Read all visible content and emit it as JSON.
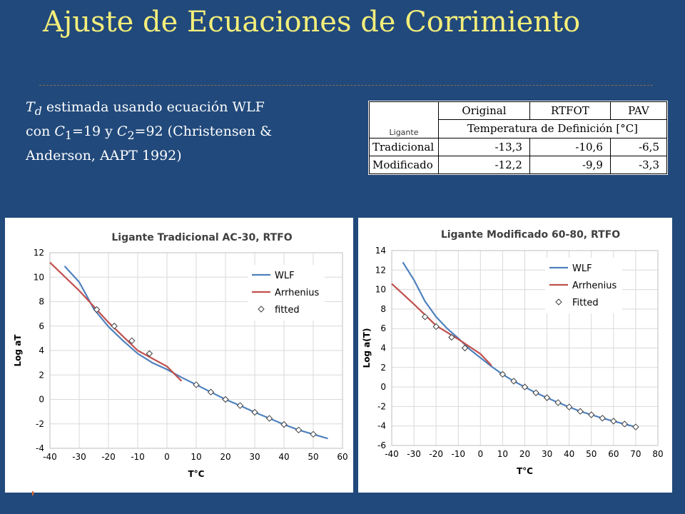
{
  "slide": {
    "title": "Ajuste de Ecuaciones de Corrimiento",
    "text": {
      "td_symbol": "T",
      "td_sub": "d",
      "line1_rest": " estimada usando ecuación WLF",
      "line2_a": "con ",
      "c1_symbol": "C",
      "c1_sub": "1",
      "line2_b": "=19 y ",
      "c2_symbol": "C",
      "c2_sub": "2",
      "line2_c": "=92 (Christensen &",
      "line3": "Anderson, AAPT 1992)"
    }
  },
  "table": {
    "row_header_label": "Ligante",
    "columns": [
      "Original",
      "RTFOT",
      "PAV"
    ],
    "subheader": "Temperatura de Definición [°C]",
    "rows": [
      {
        "label": "Tradicional",
        "values": [
          "-13,3",
          "-10,6",
          "-6,5"
        ]
      },
      {
        "label": "Modificado",
        "values": [
          "-12,2",
          "-9,9",
          "-3,3"
        ]
      }
    ]
  },
  "chart_data": [
    {
      "type": "line",
      "title": "Ligante Tradicional AC-30, RTFO",
      "xlabel": "T°C",
      "ylabel": "Log aT",
      "xlim": [
        -40,
        60
      ],
      "ylim": [
        -4,
        12
      ],
      "xticks": [
        -40,
        -30,
        -20,
        -10,
        0,
        10,
        20,
        30,
        40,
        50,
        60
      ],
      "yticks": [
        -4,
        -2,
        0,
        2,
        4,
        6,
        8,
        10,
        12
      ],
      "grid": true,
      "legend_position": "top-right",
      "series": [
        {
          "name": "WLF",
          "kind": "line",
          "color": "#4f81bd",
          "points": [
            [
              -35,
              10.9
            ],
            [
              -30,
              9.6
            ],
            [
              -25,
              7.4
            ],
            [
              -20,
              5.95
            ],
            [
              -15,
              4.8
            ],
            [
              -10,
              3.75
            ],
            [
              -5,
              3.0
            ],
            [
              0,
              2.45
            ],
            [
              5,
              1.8
            ],
            [
              10,
              1.2
            ],
            [
              15,
              0.6
            ],
            [
              20,
              0.0
            ],
            [
              25,
              -0.5
            ],
            [
              30,
              -1.05
            ],
            [
              35,
              -1.55
            ],
            [
              40,
              -2.05
            ],
            [
              45,
              -2.5
            ],
            [
              50,
              -2.85
            ],
            [
              55,
              -3.2
            ]
          ]
        },
        {
          "name": "Arrhenius",
          "kind": "line",
          "color": "#c0504d",
          "points": [
            [
              -40,
              11.2
            ],
            [
              -30,
              8.9
            ],
            [
              -20,
              6.3
            ],
            [
              -10,
              4.0
            ],
            [
              0,
              2.7
            ],
            [
              5,
              1.5
            ]
          ]
        },
        {
          "name": "fitted",
          "kind": "marker",
          "points": [
            [
              -24,
              7.35
            ],
            [
              -18,
              6.0
            ],
            [
              -12,
              4.8
            ],
            [
              -6,
              3.75
            ],
            [
              10,
              1.2
            ],
            [
              15,
              0.6
            ],
            [
              20,
              0.0
            ],
            [
              25,
              -0.5
            ],
            [
              30,
              -1.05
            ],
            [
              35,
              -1.55
            ],
            [
              40,
              -2.05
            ],
            [
              45,
              -2.5
            ],
            [
              50,
              -2.85
            ]
          ]
        }
      ]
    },
    {
      "type": "line",
      "title": "Ligante Modificado 60-80, RTFO",
      "xlabel": "T°C",
      "ylabel": "Log a(T)",
      "xlim": [
        -40,
        80
      ],
      "ylim": [
        -6,
        14
      ],
      "xticks": [
        -40,
        -30,
        -20,
        -10,
        0,
        10,
        20,
        30,
        40,
        50,
        60,
        70,
        80
      ],
      "yticks": [
        -6,
        -4,
        -2,
        0,
        2,
        4,
        6,
        8,
        10,
        12,
        14
      ],
      "grid": true,
      "legend_position": "top-right",
      "series": [
        {
          "name": "WLF",
          "kind": "line",
          "color": "#4f81bd",
          "points": [
            [
              -35,
              12.8
            ],
            [
              -30,
              11.0
            ],
            [
              -25,
              8.8
            ],
            [
              -20,
              7.2
            ],
            [
              -15,
              6.0
            ],
            [
              -10,
              5.0
            ],
            [
              -5,
              3.9
            ],
            [
              0,
              3.0
            ],
            [
              5,
              2.1
            ],
            [
              10,
              1.3
            ],
            [
              15,
              0.6
            ],
            [
              20,
              0.0
            ],
            [
              25,
              -0.6
            ],
            [
              30,
              -1.1
            ],
            [
              35,
              -1.6
            ],
            [
              40,
              -2.05
            ],
            [
              45,
              -2.5
            ],
            [
              50,
              -2.85
            ],
            [
              55,
              -3.2
            ],
            [
              60,
              -3.5
            ],
            [
              65,
              -3.8
            ],
            [
              70,
              -4.1
            ]
          ]
        },
        {
          "name": "Arrhenius",
          "kind": "line",
          "color": "#c0504d",
          "points": [
            [
              -40,
              10.6
            ],
            [
              -30,
              8.5
            ],
            [
              -20,
              6.3
            ],
            [
              -10,
              4.9
            ],
            [
              0,
              3.4
            ],
            [
              5,
              2.2
            ]
          ]
        },
        {
          "name": "Fitted",
          "kind": "marker",
          "points": [
            [
              -25,
              7.2
            ],
            [
              -20,
              6.2
            ],
            [
              -13,
              5.1
            ],
            [
              -7,
              4.0
            ],
            [
              10,
              1.3
            ],
            [
              15,
              0.6
            ],
            [
              20,
              0.0
            ],
            [
              25,
              -0.6
            ],
            [
              30,
              -1.1
            ],
            [
              35,
              -1.6
            ],
            [
              40,
              -2.05
            ],
            [
              45,
              -2.5
            ],
            [
              50,
              -2.85
            ],
            [
              55,
              -3.2
            ],
            [
              60,
              -3.5
            ],
            [
              65,
              -3.8
            ],
            [
              70,
              -4.1
            ]
          ]
        }
      ]
    }
  ]
}
